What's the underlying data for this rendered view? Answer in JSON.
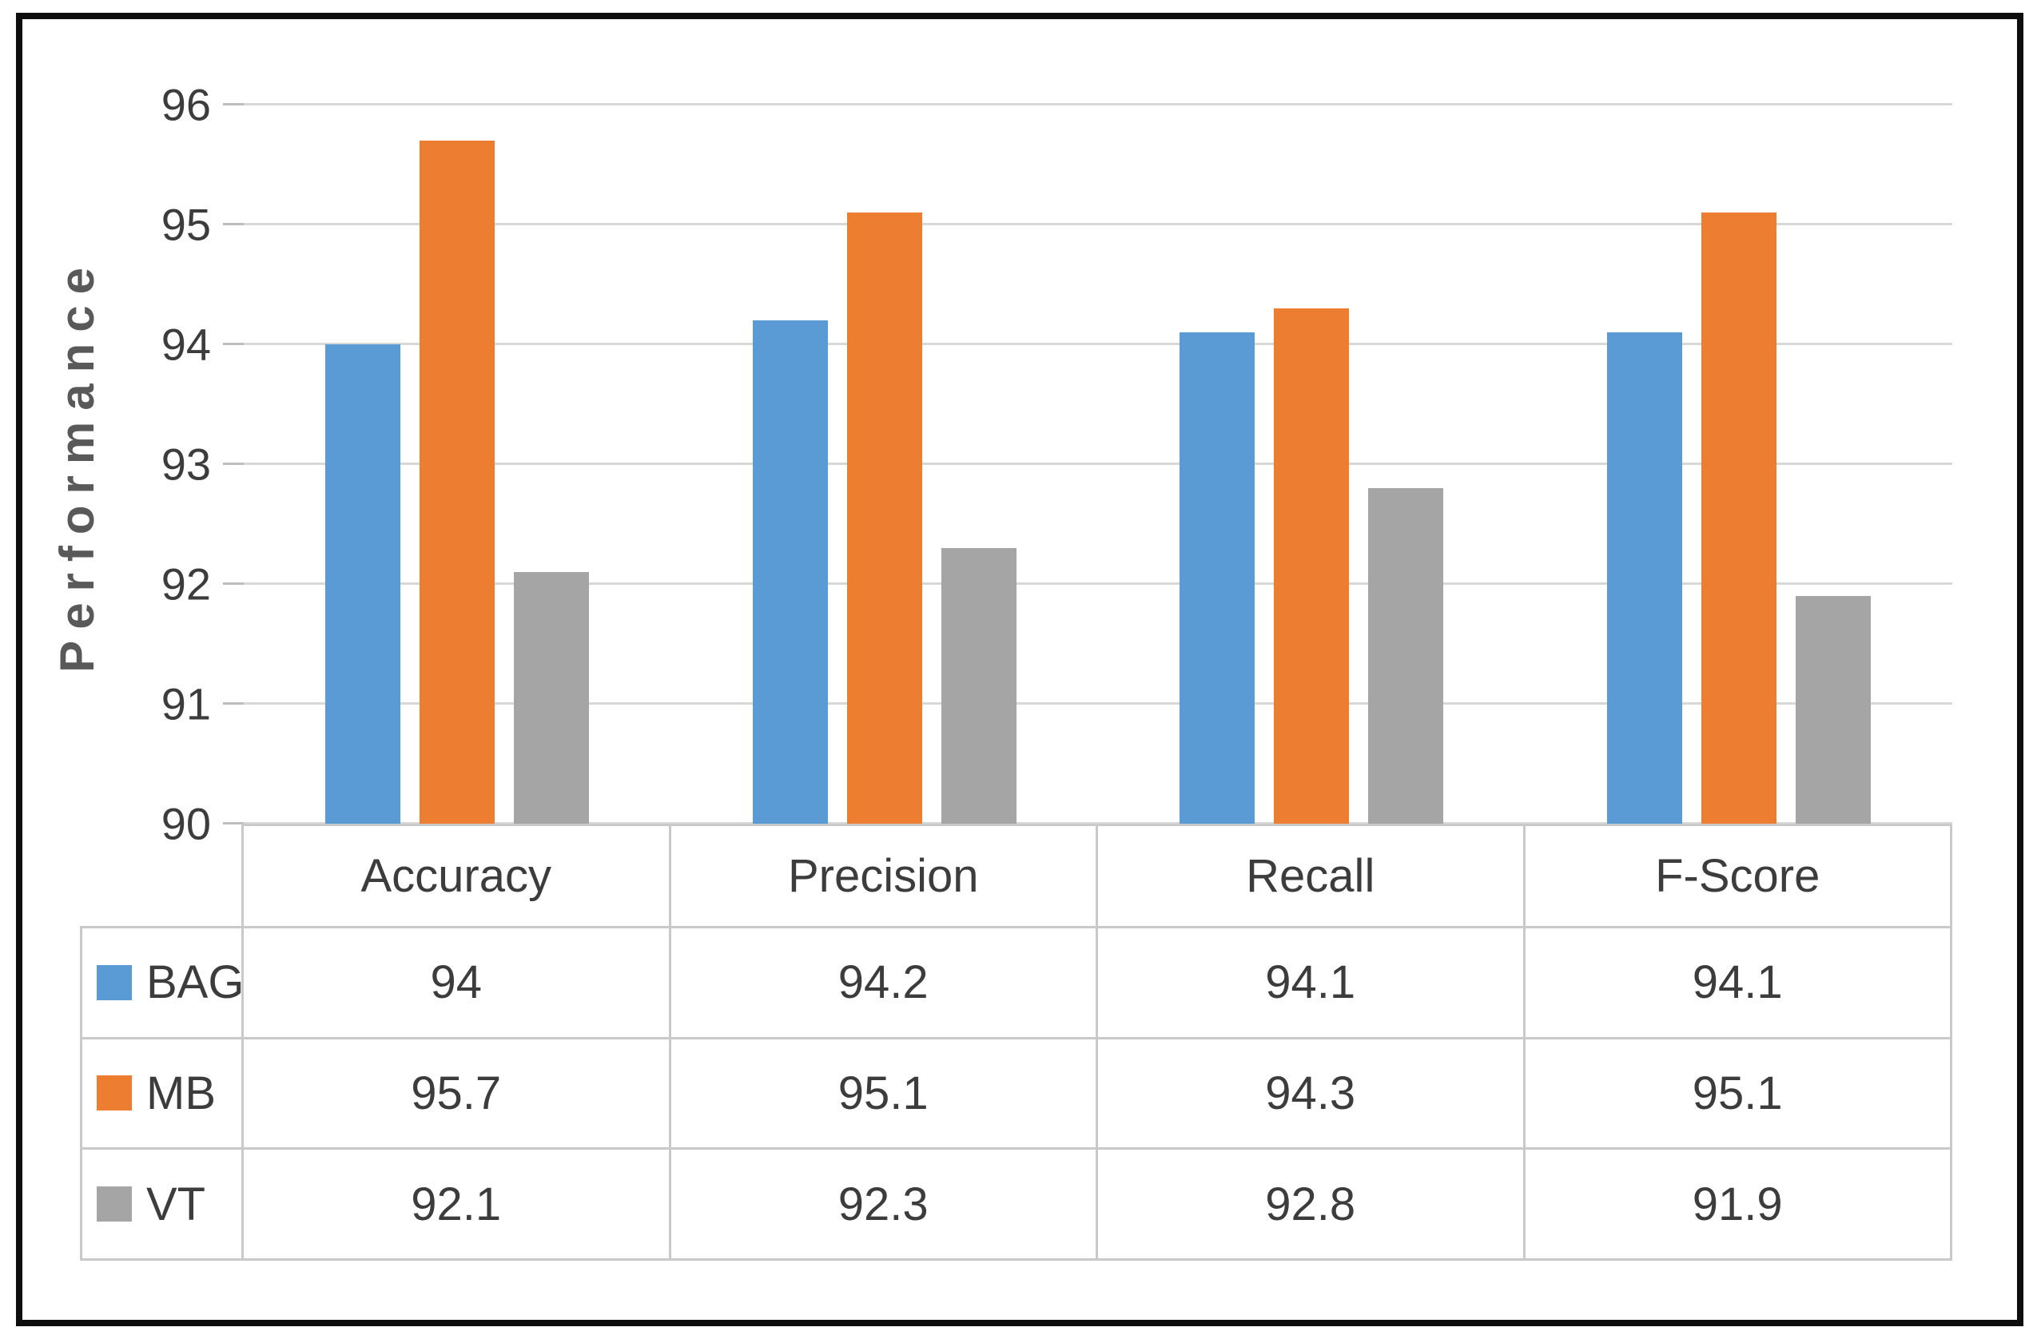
{
  "figure": {
    "border_color": "#0d0d0d",
    "background": "#ffffff"
  },
  "chart_data": {
    "type": "bar",
    "title": "",
    "ylabel": "Performance",
    "xlabel": "",
    "ylim": [
      90,
      96
    ],
    "yticks": [
      90,
      91,
      92,
      93,
      94,
      95,
      96
    ],
    "grid": true,
    "gridline_color": "#d8d8d8",
    "legend_position": "data-table-left",
    "categories": [
      "Accuracy",
      "Precision",
      "Recall",
      "F-Score"
    ],
    "series": [
      {
        "name": "BAG",
        "color": "#5B9BD5",
        "values": [
          94,
          94.2,
          94.1,
          94.1
        ]
      },
      {
        "name": "MB",
        "color": "#ED7D31",
        "values": [
          95.7,
          95.1,
          94.3,
          95.1
        ]
      },
      {
        "name": "VT",
        "color": "#A5A5A5",
        "values": [
          92.1,
          92.3,
          92.8,
          91.9
        ]
      }
    ]
  }
}
